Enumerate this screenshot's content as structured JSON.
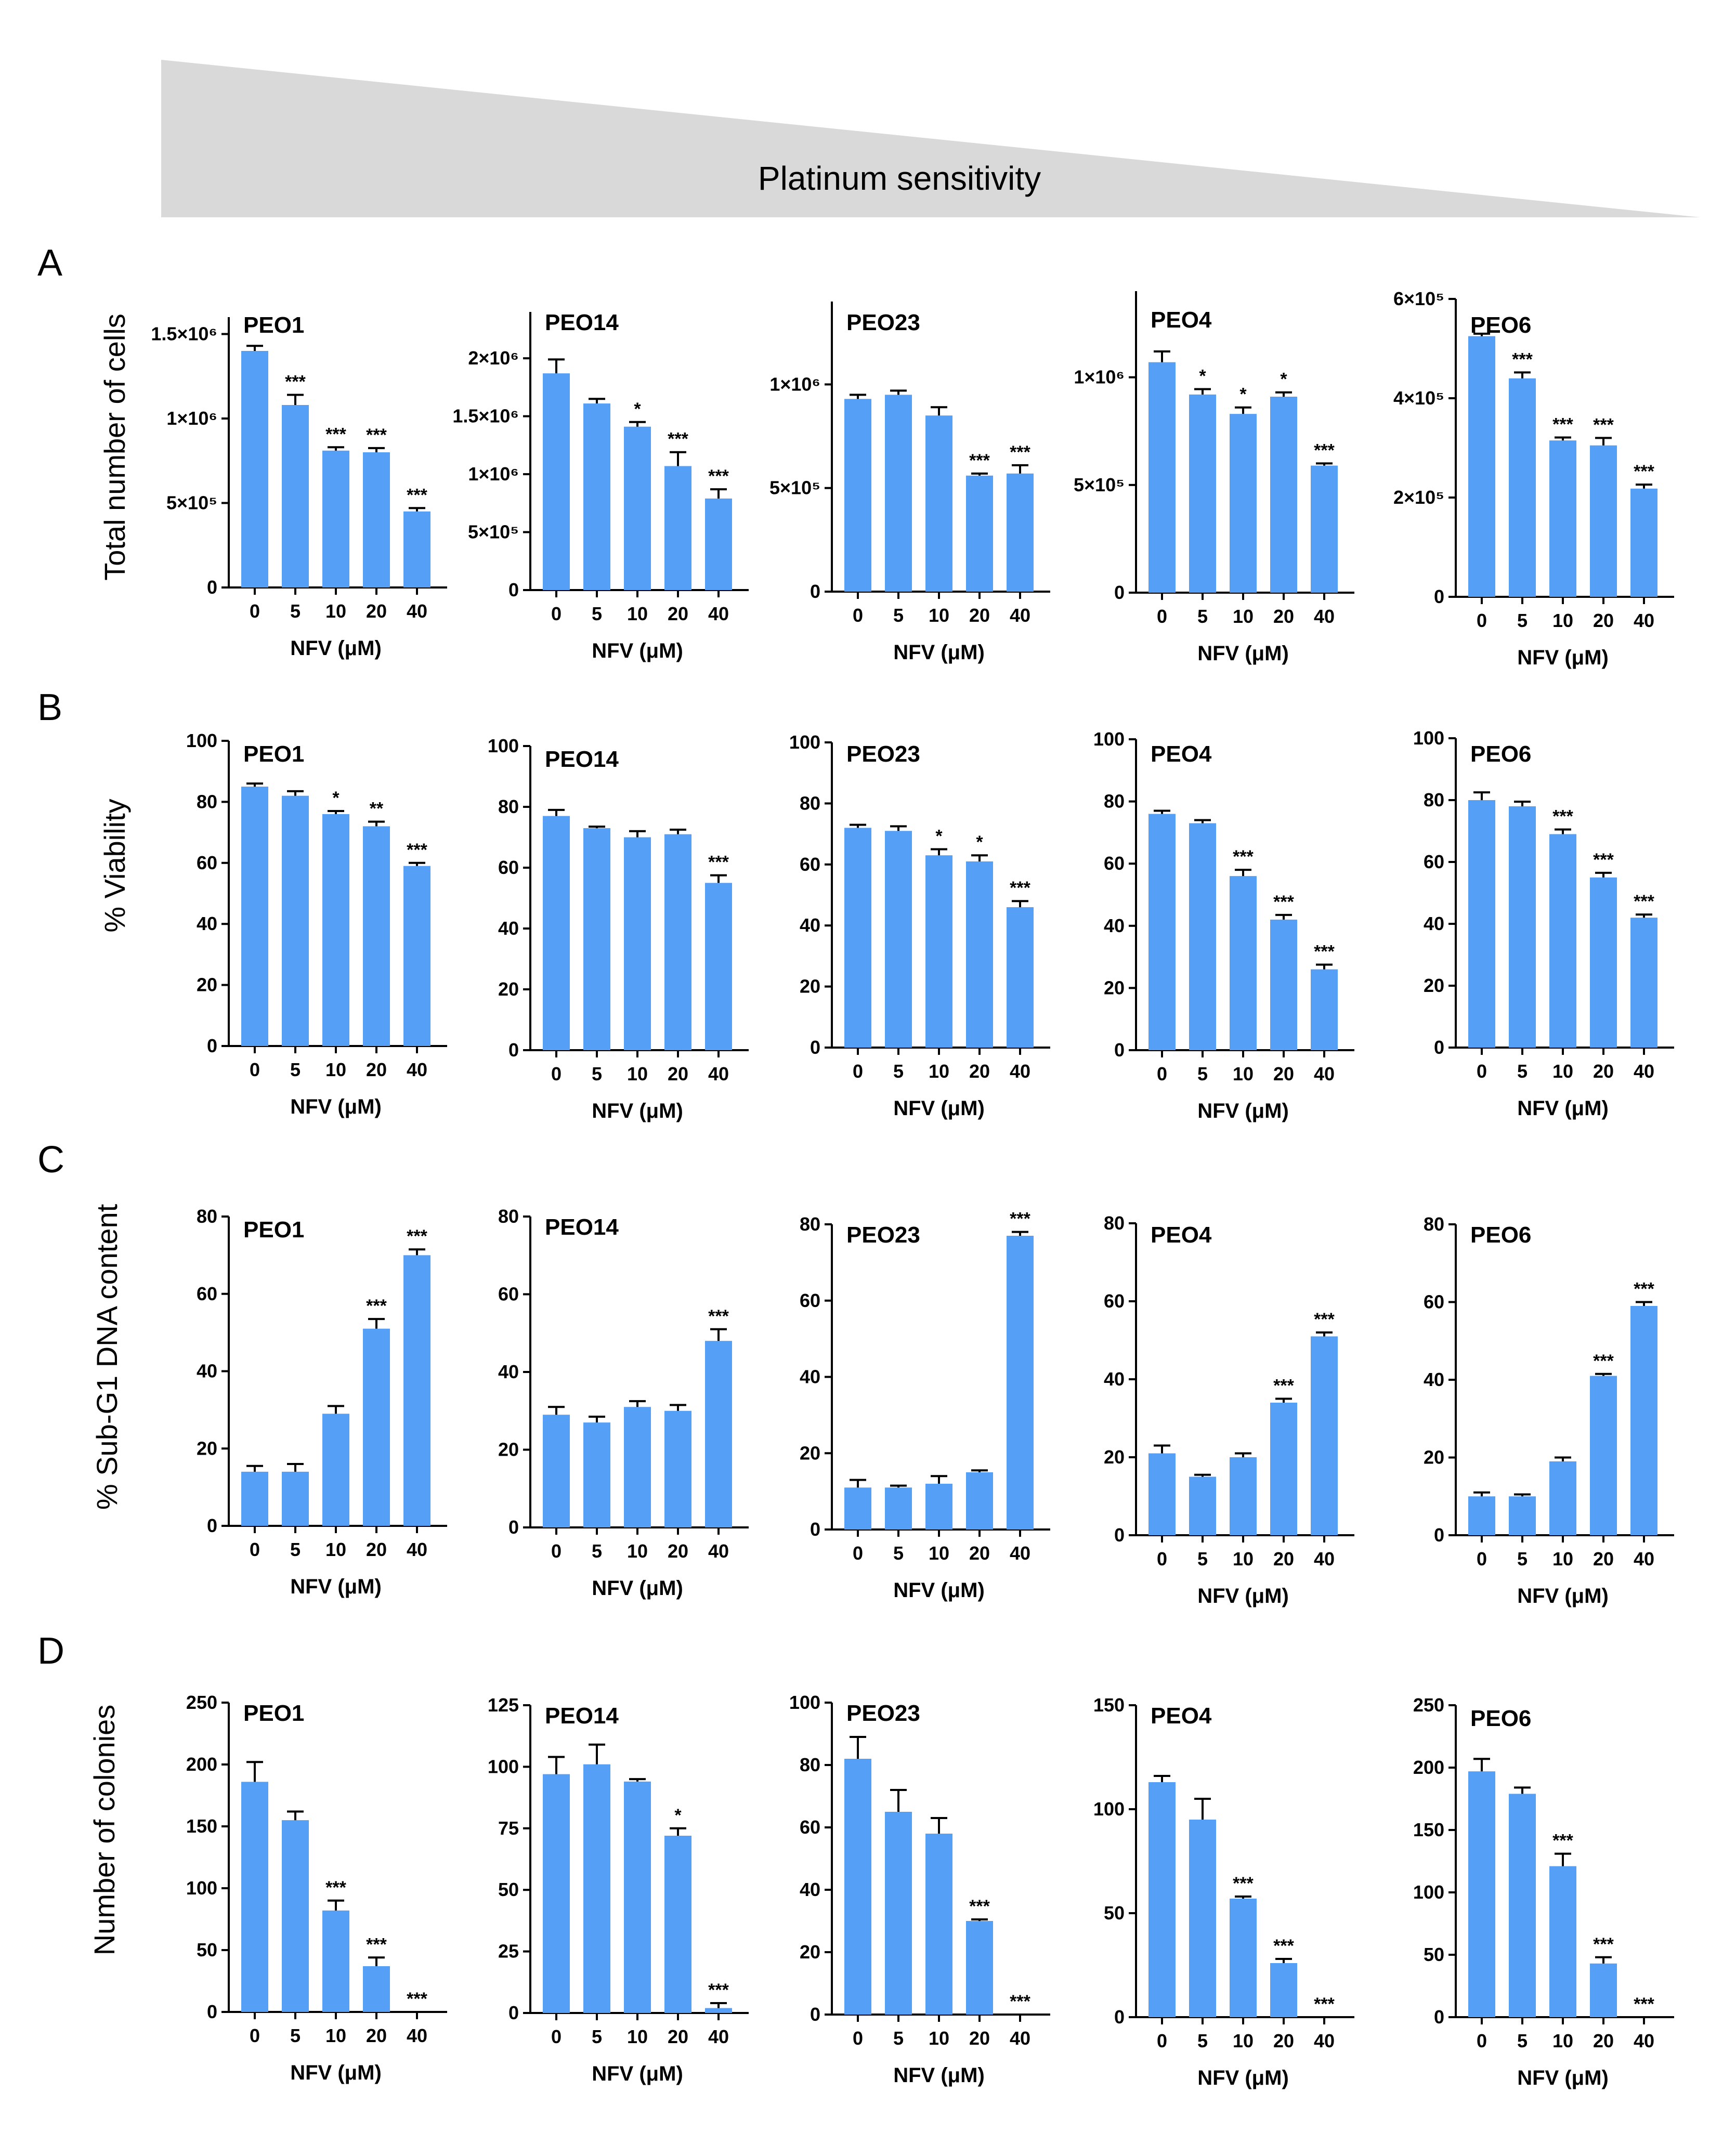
{
  "header": {
    "label": "Platinum sensitivity"
  },
  "colors": {
    "bar": "#569ff7",
    "wedge": "#d9d9d9",
    "axis": "#000000"
  },
  "rows": [
    {
      "letter": "A",
      "ylabel": "Total number of cells"
    },
    {
      "letter": "B",
      "ylabel": "% Viability"
    },
    {
      "letter": "C",
      "ylabel": "% Sub-G1 DNA content"
    },
    {
      "letter": "D",
      "ylabel": "Number of colonies"
    }
  ],
  "chart_data": [
    {
      "type": "bar",
      "row": 0,
      "col": 0,
      "title": "PEO1",
      "xlabel": "NFV (μM)",
      "categories": [
        "0",
        "5",
        "10",
        "20",
        "40"
      ],
      "values": [
        1400000,
        1080000,
        810000,
        800000,
        450000
      ],
      "errors": [
        30000,
        60000,
        20000,
        25000,
        20000
      ],
      "significance": [
        "",
        "***",
        "***",
        "***",
        "***"
      ],
      "ylim": [
        0,
        1600000
      ],
      "yticks": [
        0,
        500000,
        1000000,
        1500000
      ],
      "ytick_labels": [
        "0",
        "5×10⁵",
        "1×10⁶",
        "1.5×10⁶"
      ]
    },
    {
      "type": "bar",
      "row": 0,
      "col": 1,
      "title": "PEO14",
      "xlabel": "NFV (μM)",
      "categories": [
        "0",
        "5",
        "10",
        "20",
        "40"
      ],
      "values": [
        1870000,
        1610000,
        1410000,
        1070000,
        790000
      ],
      "errors": [
        120000,
        40000,
        40000,
        120000,
        80000
      ],
      "significance": [
        "",
        "",
        "*",
        "***",
        "***"
      ],
      "ylim": [
        0,
        2400000
      ],
      "yticks": [
        0,
        500000,
        1000000,
        1500000,
        2000000
      ],
      "ytick_labels": [
        "0",
        "5×10⁵",
        "1×10⁶",
        "1.5×10⁶",
        "2×10⁶"
      ]
    },
    {
      "type": "bar",
      "row": 0,
      "col": 2,
      "title": "PEO23",
      "xlabel": "NFV (μM)",
      "categories": [
        "0",
        "5",
        "10",
        "20",
        "40"
      ],
      "values": [
        930000,
        950000,
        850000,
        560000,
        570000
      ],
      "errors": [
        20000,
        20000,
        40000,
        10000,
        40000
      ],
      "significance": [
        "",
        "",
        "",
        "***",
        "***"
      ],
      "ylim": [
        0,
        1400000
      ],
      "yticks": [
        0,
        500000,
        1000000
      ],
      "ytick_labels": [
        "0",
        "5×10⁵",
        "1×10⁶"
      ]
    },
    {
      "type": "bar",
      "row": 0,
      "col": 3,
      "title": "PEO4",
      "xlabel": "NFV (μM)",
      "categories": [
        "0",
        "5",
        "10",
        "20",
        "40"
      ],
      "values": [
        1070000,
        920000,
        830000,
        910000,
        590000
      ],
      "errors": [
        50000,
        25000,
        30000,
        20000,
        10000
      ],
      "significance": [
        "",
        "*",
        "*",
        "*",
        "***"
      ],
      "ylim": [
        0,
        1400000
      ],
      "yticks": [
        0,
        500000,
        1000000
      ],
      "ytick_labels": [
        "0",
        "5×10⁵",
        "1×10⁶"
      ]
    },
    {
      "type": "bar",
      "row": 0,
      "col": 4,
      "title": "PEO6",
      "xlabel": "NFV (μM)",
      "categories": [
        "0",
        "5",
        "10",
        "20",
        "40"
      ],
      "values": [
        525000,
        440000,
        315000,
        305000,
        218000
      ],
      "errors": [
        5000,
        12000,
        6000,
        15000,
        8000
      ],
      "significance": [
        "",
        "***",
        "***",
        "***",
        "***"
      ],
      "ylim": [
        0,
        600000
      ],
      "yticks": [
        0,
        200000,
        400000,
        600000
      ],
      "ytick_labels": [
        "0",
        "2×10⁵",
        "4×10⁵",
        "6×10⁵"
      ]
    },
    {
      "type": "bar",
      "row": 1,
      "col": 0,
      "title": "PEO1",
      "xlabel": "NFV (μM)",
      "categories": [
        "0",
        "5",
        "10",
        "20",
        "40"
      ],
      "values": [
        85,
        82,
        76,
        72,
        59
      ],
      "errors": [
        1,
        1.5,
        1,
        1.5,
        1
      ],
      "significance": [
        "",
        "",
        "*",
        "**",
        "***"
      ],
      "ylim": [
        0,
        100
      ],
      "yticks": [
        0,
        20,
        40,
        60,
        80,
        100
      ],
      "ytick_labels": [
        "0",
        "20",
        "40",
        "60",
        "80",
        "100"
      ]
    },
    {
      "type": "bar",
      "row": 1,
      "col": 1,
      "title": "PEO14",
      "xlabel": "NFV (μM)",
      "categories": [
        "0",
        "5",
        "10",
        "20",
        "40"
      ],
      "values": [
        77,
        73,
        70,
        71,
        55
      ],
      "errors": [
        2,
        0.5,
        2,
        1.5,
        2.5
      ],
      "significance": [
        "",
        "",
        "",
        "",
        "***"
      ],
      "ylim": [
        0,
        100
      ],
      "yticks": [
        0,
        20,
        40,
        60,
        80,
        100
      ],
      "ytick_labels": [
        "0",
        "20",
        "40",
        "60",
        "80",
        "100"
      ]
    },
    {
      "type": "bar",
      "row": 1,
      "col": 2,
      "title": "PEO23",
      "xlabel": "NFV (μM)",
      "categories": [
        "0",
        "5",
        "10",
        "20",
        "40"
      ],
      "values": [
        72,
        71,
        63,
        61,
        46
      ],
      "errors": [
        1,
        1.5,
        2,
        2,
        2
      ],
      "significance": [
        "",
        "",
        "*",
        "*",
        "***"
      ],
      "ylim": [
        0,
        100
      ],
      "yticks": [
        0,
        20,
        40,
        60,
        80,
        100
      ],
      "ytick_labels": [
        "0",
        "20",
        "40",
        "60",
        "80",
        "100"
      ]
    },
    {
      "type": "bar",
      "row": 1,
      "col": 3,
      "title": "PEO4",
      "xlabel": "NFV (μM)",
      "categories": [
        "0",
        "5",
        "10",
        "20",
        "40"
      ],
      "values": [
        76,
        73,
        56,
        42,
        26
      ],
      "errors": [
        1,
        1,
        2,
        1.5,
        1.5
      ],
      "significance": [
        "",
        "",
        "***",
        "***",
        "***"
      ],
      "ylim": [
        0,
        100
      ],
      "yticks": [
        0,
        20,
        40,
        60,
        80,
        100
      ],
      "ytick_labels": [
        "0",
        "20",
        "40",
        "60",
        "80",
        "100"
      ]
    },
    {
      "type": "bar",
      "row": 1,
      "col": 4,
      "title": "PEO6",
      "xlabel": "NFV (μM)",
      "categories": [
        "0",
        "5",
        "10",
        "20",
        "40"
      ],
      "values": [
        80,
        78,
        69,
        55,
        42
      ],
      "errors": [
        2.5,
        1.5,
        1.5,
        1.5,
        1
      ],
      "significance": [
        "",
        "",
        "***",
        "***",
        "***"
      ],
      "ylim": [
        0,
        100
      ],
      "yticks": [
        0,
        20,
        40,
        60,
        80,
        100
      ],
      "ytick_labels": [
        "0",
        "20",
        "40",
        "60",
        "80",
        "100"
      ]
    },
    {
      "type": "bar",
      "row": 2,
      "col": 0,
      "title": "PEO1",
      "xlabel": "NFV (μM)",
      "categories": [
        "0",
        "5",
        "10",
        "20",
        "40"
      ],
      "values": [
        14,
        14,
        29,
        51,
        70
      ],
      "errors": [
        1.5,
        2,
        2,
        2.5,
        1.5
      ],
      "significance": [
        "",
        "",
        "",
        "***",
        "***"
      ],
      "ylim": [
        0,
        80
      ],
      "yticks": [
        0,
        20,
        40,
        60,
        80
      ],
      "ytick_labels": [
        "0",
        "20",
        "40",
        "60",
        "80"
      ]
    },
    {
      "type": "bar",
      "row": 2,
      "col": 1,
      "title": "PEO14",
      "xlabel": "NFV (μM)",
      "categories": [
        "0",
        "5",
        "10",
        "20",
        "40"
      ],
      "values": [
        29,
        27,
        31,
        30,
        48
      ],
      "errors": [
        2,
        1.5,
        1.5,
        1.5,
        3
      ],
      "significance": [
        "",
        "",
        "",
        "",
        "***"
      ],
      "ylim": [
        0,
        80
      ],
      "yticks": [
        0,
        20,
        40,
        60,
        80
      ],
      "ytick_labels": [
        "0",
        "20",
        "40",
        "60",
        "80"
      ]
    },
    {
      "type": "bar",
      "row": 2,
      "col": 2,
      "title": "PEO23",
      "xlabel": "NFV (μM)",
      "categories": [
        "0",
        "5",
        "10",
        "20",
        "40"
      ],
      "values": [
        11,
        11,
        12,
        15,
        77
      ],
      "errors": [
        2,
        0.5,
        2,
        0.5,
        1
      ],
      "significance": [
        "",
        "",
        "",
        "",
        "***"
      ],
      "ylim": [
        0,
        80
      ],
      "yticks": [
        0,
        20,
        40,
        60,
        80
      ],
      "ytick_labels": [
        "0",
        "20",
        "40",
        "60",
        "80"
      ]
    },
    {
      "type": "bar",
      "row": 2,
      "col": 3,
      "title": "PEO4",
      "xlabel": "NFV (μM)",
      "categories": [
        "0",
        "5",
        "10",
        "20",
        "40"
      ],
      "values": [
        21,
        15,
        20,
        34,
        51
      ],
      "errors": [
        2,
        0.5,
        1,
        1,
        1
      ],
      "significance": [
        "",
        "",
        "",
        "***",
        "***"
      ],
      "ylim": [
        0,
        80
      ],
      "yticks": [
        0,
        20,
        40,
        60,
        80
      ],
      "ytick_labels": [
        "0",
        "20",
        "40",
        "60",
        "80"
      ]
    },
    {
      "type": "bar",
      "row": 2,
      "col": 4,
      "title": "PEO6",
      "xlabel": "NFV (μM)",
      "categories": [
        "0",
        "5",
        "10",
        "20",
        "40"
      ],
      "values": [
        10,
        10,
        19,
        41,
        59
      ],
      "errors": [
        1,
        0.5,
        1,
        0.5,
        1
      ],
      "significance": [
        "",
        "",
        "",
        "***",
        "***"
      ],
      "ylim": [
        0,
        80
      ],
      "yticks": [
        0,
        20,
        40,
        60,
        80
      ],
      "ytick_labels": [
        "0",
        "20",
        "40",
        "60",
        "80"
      ]
    },
    {
      "type": "bar",
      "row": 3,
      "col": 0,
      "title": "PEO1",
      "xlabel": "NFV (μM)",
      "categories": [
        "0",
        "5",
        "10",
        "20",
        "40"
      ],
      "values": [
        186,
        155,
        82,
        37,
        0
      ],
      "errors": [
        16,
        7,
        8,
        7,
        0
      ],
      "significance": [
        "",
        "",
        "***",
        "***",
        "***"
      ],
      "ylim": [
        0,
        250
      ],
      "yticks": [
        0,
        50,
        100,
        150,
        200,
        250
      ],
      "ytick_labels": [
        "0",
        "50",
        "100",
        "150",
        "200",
        "250"
      ]
    },
    {
      "type": "bar",
      "row": 3,
      "col": 1,
      "title": "PEO14",
      "xlabel": "NFV (μM)",
      "categories": [
        "0",
        "5",
        "10",
        "20",
        "40"
      ],
      "values": [
        97,
        101,
        94,
        72,
        2
      ],
      "errors": [
        7,
        8,
        1,
        3,
        2
      ],
      "significance": [
        "",
        "",
        "",
        "*",
        "***"
      ],
      "ylim": [
        0,
        125
      ],
      "yticks": [
        0,
        25,
        50,
        75,
        100,
        125
      ],
      "ytick_labels": [
        "0",
        "25",
        "50",
        "75",
        "100",
        "125"
      ]
    },
    {
      "type": "bar",
      "row": 3,
      "col": 2,
      "title": "PEO23",
      "xlabel": "NFV (μM)",
      "categories": [
        "0",
        "5",
        "10",
        "20",
        "40"
      ],
      "values": [
        82,
        65,
        58,
        30,
        0
      ],
      "errors": [
        7,
        7,
        5,
        0.5,
        0
      ],
      "significance": [
        "",
        "",
        "",
        "***",
        "***"
      ],
      "ylim": [
        0,
        100
      ],
      "yticks": [
        0,
        20,
        40,
        60,
        80,
        100
      ],
      "ytick_labels": [
        "0",
        "20",
        "40",
        "60",
        "80",
        "100"
      ]
    },
    {
      "type": "bar",
      "row": 3,
      "col": 3,
      "title": "PEO4",
      "xlabel": "NFV (μM)",
      "categories": [
        "0",
        "5",
        "10",
        "20",
        "40"
      ],
      "values": [
        113,
        95,
        57,
        26,
        0
      ],
      "errors": [
        3,
        10,
        1,
        2,
        0
      ],
      "significance": [
        "",
        "",
        "***",
        "***",
        "***"
      ],
      "ylim": [
        0,
        150
      ],
      "yticks": [
        0,
        50,
        100,
        150
      ],
      "ytick_labels": [
        "0",
        "50",
        "100",
        "150"
      ]
    },
    {
      "type": "bar",
      "row": 3,
      "col": 4,
      "title": "PEO6",
      "xlabel": "NFV (μM)",
      "categories": [
        "0",
        "5",
        "10",
        "20",
        "40"
      ],
      "values": [
        197,
        179,
        121,
        43,
        0
      ],
      "errors": [
        10,
        5,
        10,
        5,
        0
      ],
      "significance": [
        "",
        "",
        "***",
        "***",
        "***"
      ],
      "ylim": [
        0,
        250
      ],
      "yticks": [
        0,
        50,
        100,
        150,
        200,
        250
      ],
      "ytick_labels": [
        "0",
        "50",
        "100",
        "150",
        "200",
        "250"
      ]
    }
  ]
}
